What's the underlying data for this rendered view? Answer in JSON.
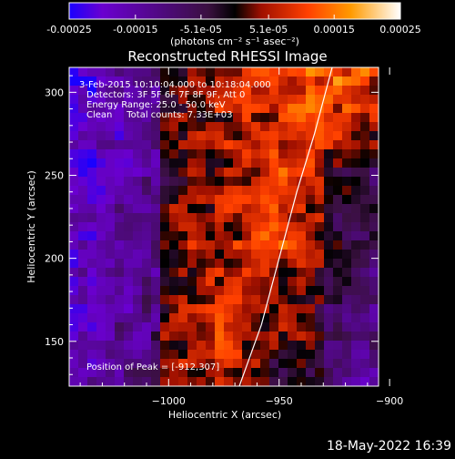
{
  "colorbar": {
    "tick_labels": [
      "-0.00025",
      "-0.00015",
      "-5.1e-05",
      "5.1e-05",
      "0.00015",
      "0.00025"
    ],
    "tick_values": [
      -0.00025,
      -0.00015,
      -5.1e-05,
      5.1e-05,
      0.00015,
      0.00025
    ],
    "range": [
      -0.00025,
      0.00025
    ],
    "units_label": "(photons cm⁻² s⁻¹ asec⁻²)",
    "colormap": [
      "#1a00ff",
      "#6a00d0",
      "#3a1040",
      "#000000",
      "#a01000",
      "#ff4000",
      "#ff9a00",
      "#ffffff"
    ]
  },
  "chart_data": {
    "type": "heatmap",
    "title": "Reconstructed RHESSI Image",
    "xlabel": "Heliocentric X (arcsec)",
    "ylabel": "Heliocentric Y (arcsec)",
    "xlim": [
      -1045,
      -905
    ],
    "ylim": [
      123,
      315
    ],
    "x_ticks": [
      -1000,
      -950,
      -900
    ],
    "x_tick_labels": [
      "−1000",
      "−950",
      "−900"
    ],
    "y_ticks": [
      150,
      200,
      250,
      300
    ],
    "y_tick_labels": [
      "150",
      "200",
      "250",
      "300"
    ],
    "annotations": [
      "3-Feb-2015 10:10:04.000 to 10:18:04.000",
      "Detectors: 3F 5F 6F 7F 8F 9F, Att 0",
      "Energy Range: 25.0 - 50.0 keV",
      "Clean     Total counts: 7.33E+03"
    ],
    "peak_label": "Position of Peak = [-912,307]",
    "peak": [
      -912,
      307
    ],
    "limb_curve": [
      [
        -968,
        123
      ],
      [
        -958,
        160
      ],
      [
        -950,
        200
      ],
      [
        -942,
        240
      ],
      [
        -934,
        275
      ],
      [
        -926,
        315
      ]
    ]
  },
  "footer": {
    "timestamp": "18-May-2022 16:39"
  }
}
